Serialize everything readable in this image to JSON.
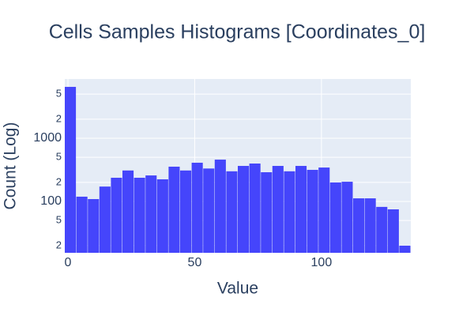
{
  "chart_data": {
    "type": "histogram",
    "title": "Cells Samples Histograms [Coordinates_0]",
    "x_label": "Value",
    "y_label": "Count (Log)",
    "bins": [
      -1.25,
      3.3,
      7.85,
      12.4,
      16.95,
      21.5,
      26.05,
      30.6,
      35.15,
      39.7,
      44.25,
      48.8,
      53.35,
      57.9,
      62.45,
      67,
      71.55,
      76.1,
      80.65,
      85.2,
      89.75,
      94.3,
      98.85,
      103.4,
      107.95,
      112.5,
      117.05,
      121.6,
      126.15,
      130.7,
      135.25
    ],
    "counts": [
      6500,
      119,
      109,
      172,
      237,
      309,
      237,
      258,
      224,
      355,
      309,
      410,
      332,
      459,
      300,
      365,
      398,
      290,
      365,
      300,
      365,
      316,
      344,
      200,
      205,
      112,
      112,
      82,
      75,
      20
    ],
    "color": "#4545fb",
    "xlim": [
      -1.25,
      135.25
    ],
    "xticks": [
      0,
      50,
      100
    ],
    "ylim": [
      15.4,
      8660
    ],
    "log_y": true,
    "yticks": [
      {
        "value": 20,
        "label": "2"
      },
      {
        "value": 50,
        "label": "5"
      },
      100,
      {
        "value": 200,
        "label": "2"
      },
      {
        "value": 500,
        "label": "5"
      },
      1000,
      {
        "value": 2000,
        "label": "2"
      },
      {
        "value": 5000,
        "label": "5"
      }
    ],
    "grid": true
  }
}
